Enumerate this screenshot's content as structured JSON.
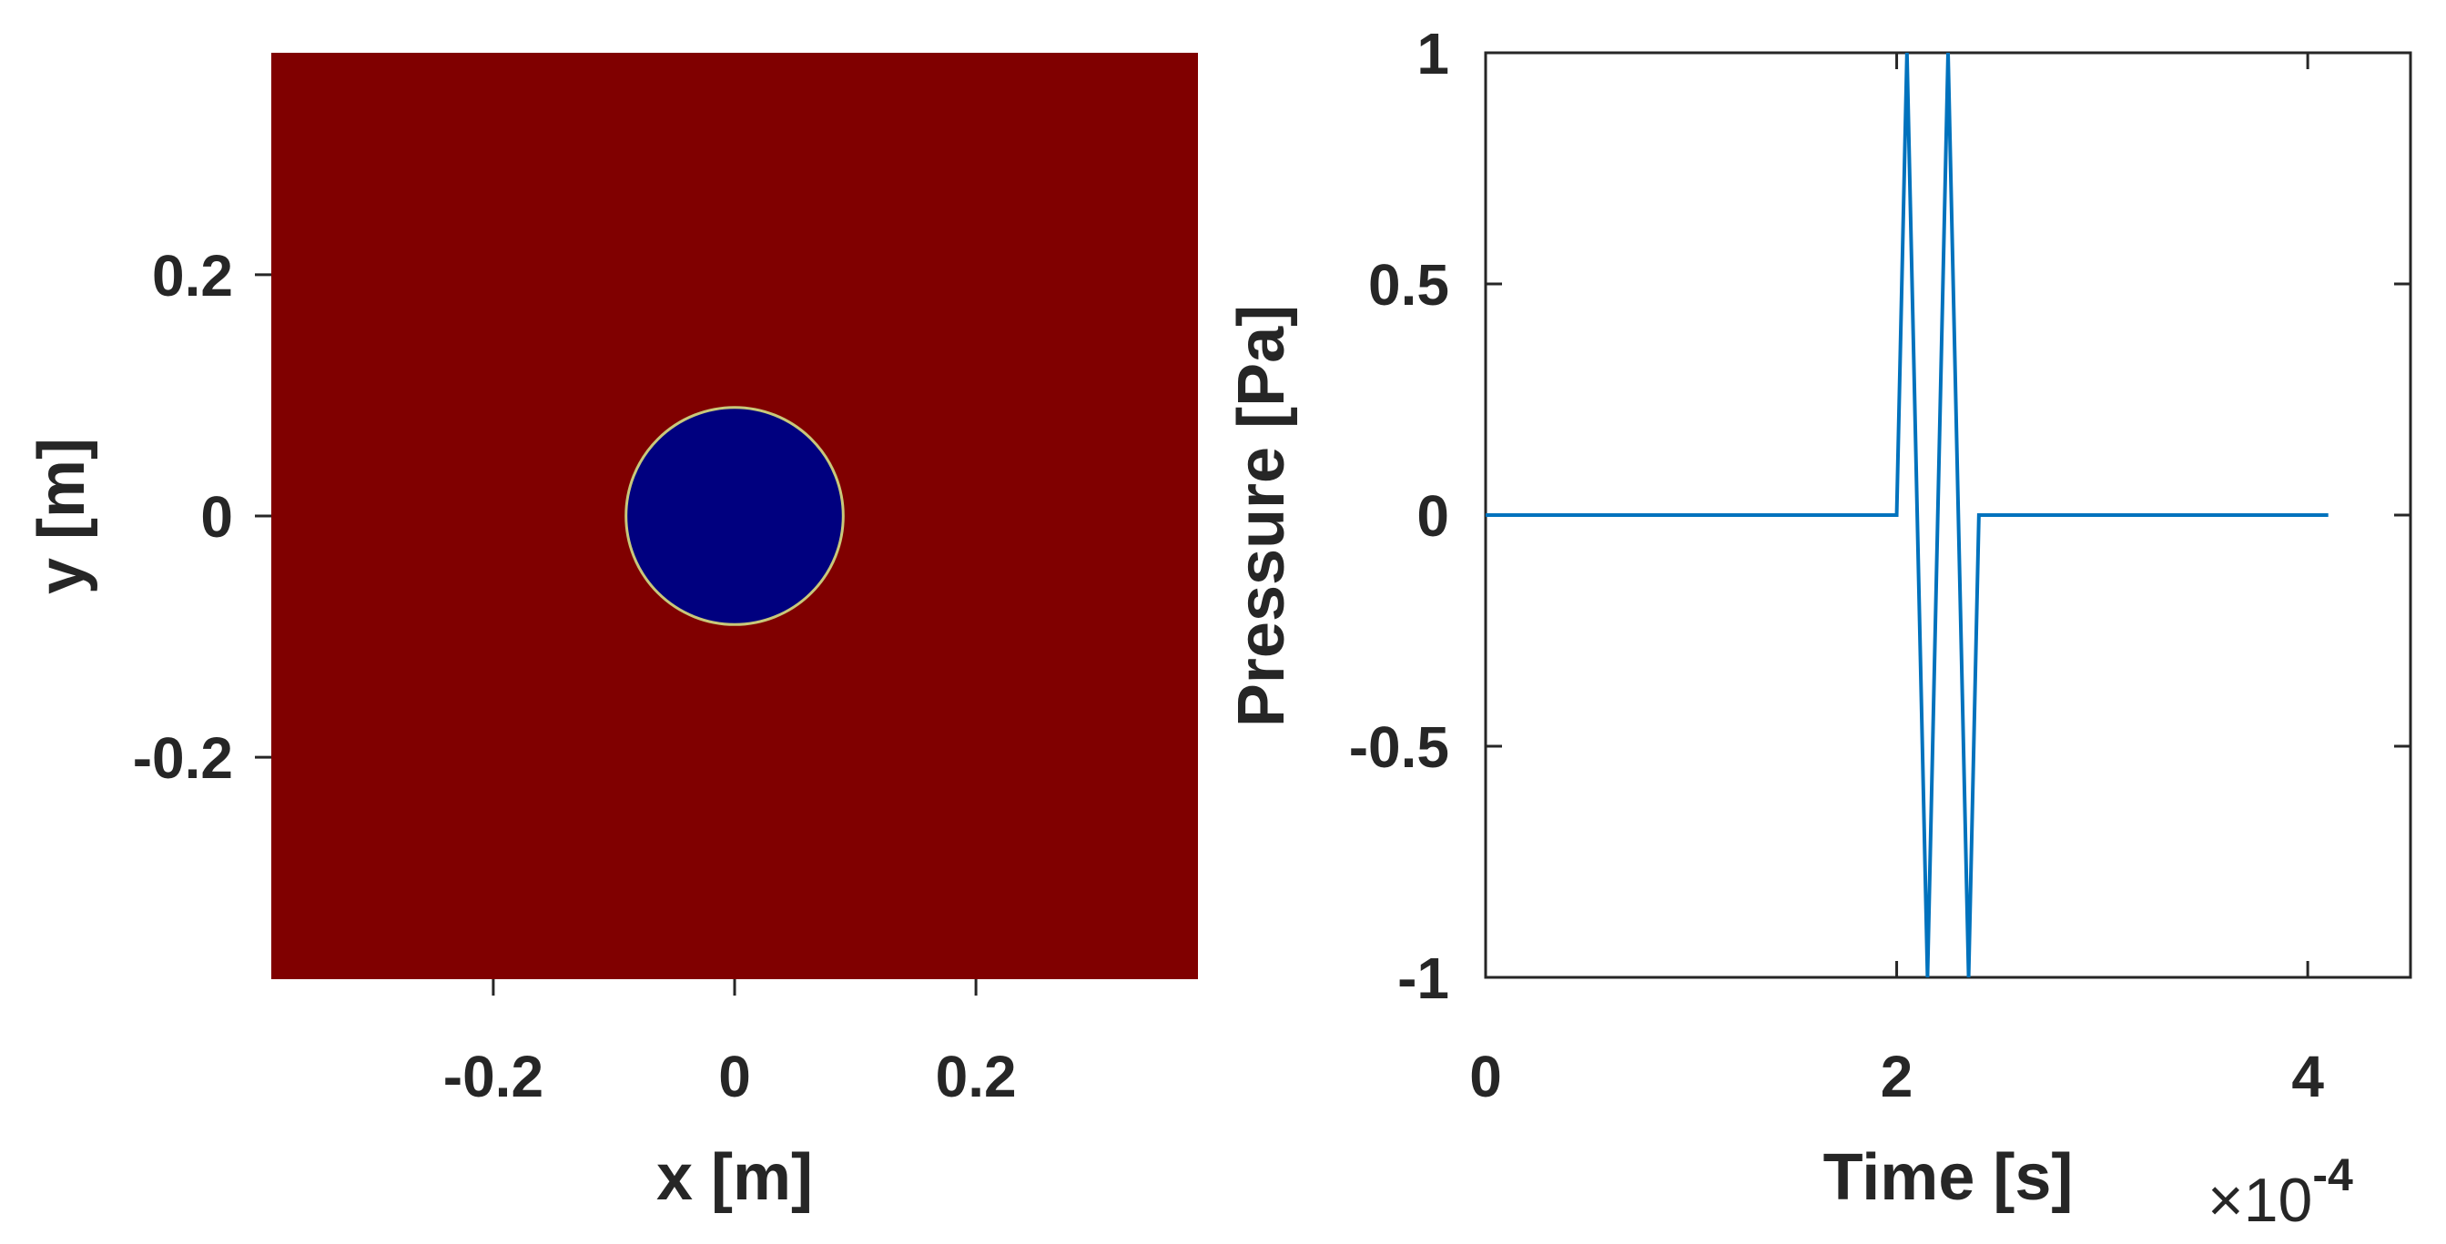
{
  "chart_data": [
    {
      "type": "heatmap",
      "title": "",
      "xlabel": "x [m]",
      "ylabel": "y [m]",
      "xlim": [
        -0.384,
        0.384
      ],
      "ylim": [
        -0.384,
        0.384
      ],
      "xticks": [
        -0.2,
        0,
        0.2
      ],
      "xtick_labels": [
        "-0.2",
        "0",
        "0.2"
      ],
      "yticks": [
        0.2,
        0,
        -0.2
      ],
      "ytick_labels": [
        "0.2",
        "0",
        "-0.2"
      ],
      "background": {
        "color": "#800000"
      },
      "disc": {
        "center": [
          0,
          0
        ],
        "radius": 0.09,
        "color": "#00007f",
        "edge_color": "#c8c87a"
      },
      "grid": false
    },
    {
      "type": "line",
      "title": "",
      "xlabel": "Time [s]",
      "ylabel": "Pressure [Pa]",
      "x_multiplier": "×10",
      "x_multiplier_exponent": "-4",
      "xlim": [
        0,
        4.5
      ],
      "ylim": [
        -1,
        1
      ],
      "xticks": [
        0,
        2,
        4
      ],
      "xtick_labels": [
        "0",
        "2",
        "4"
      ],
      "yticks": [
        1,
        0.5,
        0,
        -0.5,
        -1
      ],
      "ytick_labels": [
        "1",
        "0.5",
        "0",
        "-0.5",
        "-1"
      ],
      "grid": false,
      "series": [
        {
          "color": "#0072bd",
          "x": [
            0,
            2.0,
            2.05,
            2.15,
            2.25,
            2.35,
            2.4,
            4.1
          ],
          "y": [
            0,
            0,
            1,
            -1,
            1,
            -1,
            0,
            0
          ]
        }
      ]
    }
  ]
}
